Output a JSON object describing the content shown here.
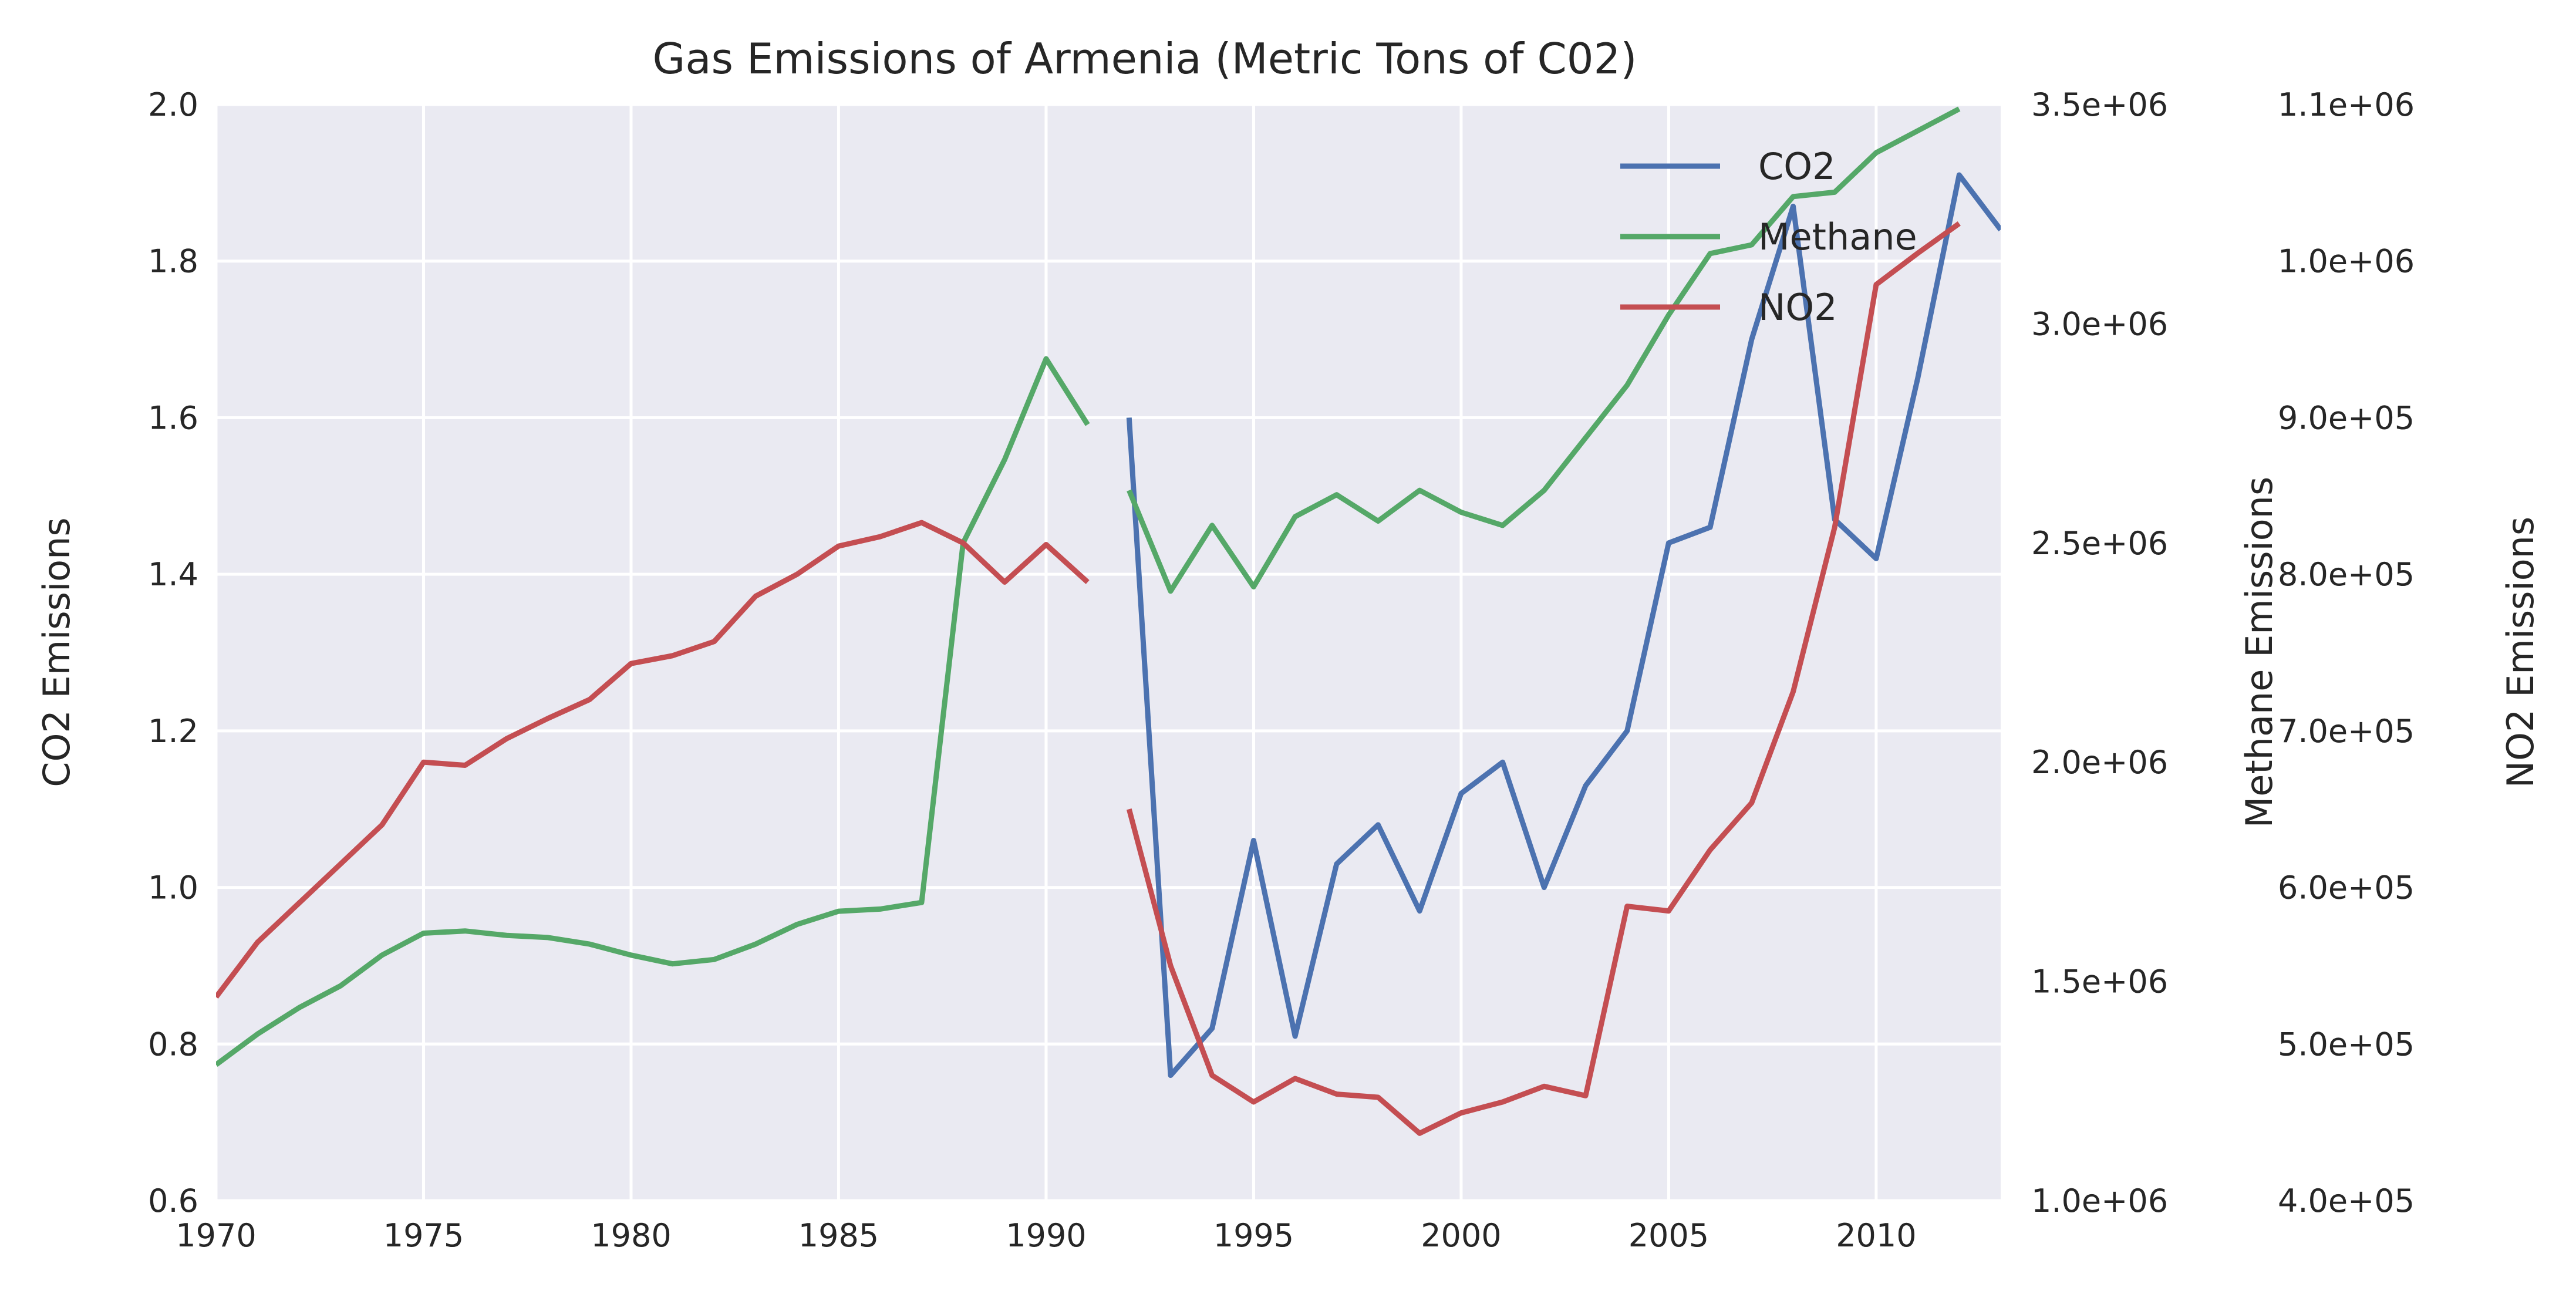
{
  "chart_data": {
    "type": "line",
    "title": "Gas Emissions of Armenia (Metric Tons of C02)",
    "xlabel": "",
    "xlim": [
      1970,
      2013
    ],
    "x_ticks": [
      "1970",
      "1975",
      "1980",
      "1985",
      "1990",
      "1995",
      "2000",
      "2005",
      "2010"
    ],
    "grid": true,
    "legend_position": "top-right",
    "background_color": "#eaeaf2",
    "axes": [
      {
        "id": "co2",
        "label": "CO2 Emissions",
        "side": "left",
        "ylim": [
          0.6,
          2.0
        ],
        "ticks": [
          "0.6",
          "0.8",
          "1.0",
          "1.2",
          "1.4",
          "1.6",
          "1.8",
          "2.0"
        ]
      },
      {
        "id": "methane",
        "label": "Methane Emissions",
        "side": "right",
        "ylim": [
          1000000,
          3500000
        ],
        "ticks": [
          "1.0e+06",
          "1.5e+06",
          "2.0e+06",
          "2.5e+06",
          "3.0e+06",
          "3.5e+06"
        ]
      },
      {
        "id": "no2",
        "label": "NO2 Emissions",
        "side": "right-outer",
        "ylim": [
          400000,
          1100000
        ],
        "ticks": [
          "4.0e+05",
          "5.0e+05",
          "6.0e+05",
          "7.0e+05",
          "8.0e+05",
          "9.0e+05",
          "1.0e+06",
          "1.1e+06"
        ]
      }
    ],
    "series": [
      {
        "name": "CO2",
        "axis": "co2",
        "color": "#4c72b0",
        "segments": [
          {
            "x": [
              1992,
              1993,
              1994,
              1995,
              1996,
              1997,
              1998,
              1999,
              2000,
              2001,
              2002,
              2003,
              2004,
              2005,
              2006,
              2007,
              2008,
              2009,
              2010,
              2011,
              2012,
              2013
            ],
            "y": [
              1.6,
              0.76,
              0.82,
              1.06,
              0.81,
              1.03,
              1.08,
              0.97,
              1.12,
              1.16,
              1.0,
              1.13,
              1.2,
              1.44,
              1.46,
              1.7,
              1.87,
              1.47,
              1.42,
              1.65,
              1.91,
              1.84
            ]
          }
        ]
      },
      {
        "name": "Methane",
        "axis": "methane",
        "color": "#55a868",
        "segments": [
          {
            "x": [
              1970,
              1971,
              1972,
              1973,
              1974,
              1975,
              1976,
              1977,
              1978,
              1979,
              1980,
              1981,
              1982,
              1983,
              1984,
              1985,
              1986,
              1987,
              1988,
              1989,
              1990,
              1991
            ],
            "y": [
              1310000,
              1380000,
              1440000,
              1490000,
              1560000,
              1610000,
              1615000,
              1605000,
              1600000,
              1585000,
              1560000,
              1540000,
              1550000,
              1585000,
              1630000,
              1660000,
              1665000,
              1680000,
              2500000,
              2690000,
              2920000,
              2770000
            ]
          },
          {
            "x": [
              1992,
              1993,
              1994,
              1995,
              1996,
              1997,
              1998,
              1999,
              2000,
              2001,
              2002,
              2003,
              2004,
              2005,
              2006,
              2007,
              2008,
              2009,
              2010,
              2011,
              2012
            ],
            "y": [
              2620000,
              2390000,
              2540000,
              2400000,
              2560000,
              2610000,
              2550000,
              2620000,
              2570000,
              2540000,
              2620000,
              2740000,
              2860000,
              3020000,
              3160000,
              3180000,
              3290000,
              3300000,
              3390000,
              3440000,
              3490000
            ]
          }
        ]
      },
      {
        "name": "NO2",
        "axis": "no2",
        "color": "#c44e52",
        "segments": [
          {
            "x": [
              1970,
              1971,
              1972,
              1973,
              1974,
              1975,
              1976,
              1977,
              1978,
              1979,
              1980,
              1981,
              1982,
              1983,
              1984,
              1985,
              1986,
              1987,
              1988,
              1989,
              1990,
              1991
            ],
            "y": [
              530000,
              565000,
              590000,
              615000,
              640000,
              680000,
              678000,
              695000,
              708000,
              720000,
              743000,
              748000,
              757000,
              786000,
              800000,
              818000,
              824000,
              833000,
              820000,
              795000,
              819000,
              795000
            ]
          },
          {
            "x": [
              1992,
              1993,
              1994,
              1995,
              1996,
              1997,
              1998,
              1999,
              2000,
              2001,
              2002,
              2003,
              2004,
              2005,
              2006,
              2007,
              2008,
              2009,
              2010,
              2011,
              2012
            ],
            "y": [
              650000,
              550000,
              480000,
              463000,
              478000,
              468000,
              466000,
              443000,
              456000,
              463000,
              473000,
              467000,
              588000,
              585000,
              624000,
              654000,
              725000,
              830000,
              985000,
              1005000,
              1024000
            ]
          }
        ]
      }
    ]
  }
}
